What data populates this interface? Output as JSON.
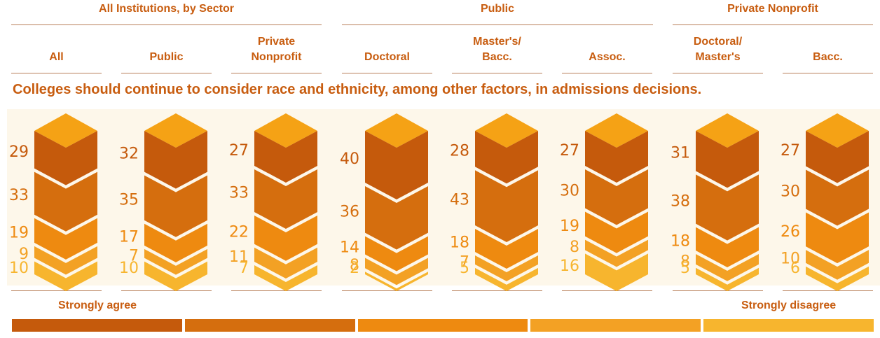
{
  "groups": [
    {
      "label": "All Institutions, by Sector"
    },
    {
      "label": "Public"
    },
    {
      "label": "Private Nonprofit"
    }
  ],
  "columns": [
    {
      "label": "All"
    },
    {
      "label": "Public"
    },
    {
      "label": "Private\nNonprofit"
    },
    {
      "label": "Doctoral"
    },
    {
      "label": "Master's/\nBacc."
    },
    {
      "label": "Assoc."
    },
    {
      "label": "Doctoral/\nMaster's"
    },
    {
      "label": "Bacc."
    }
  ],
  "question": "Colleges should continue to consider race and ethnicity, among other factors, in admissions decisions.",
  "scale": {
    "left": "Strongly agree",
    "right": "Strongly disagree"
  },
  "colors": [
    "#c55a0c",
    "#d56e0e",
    "#ee8a10",
    "#f3a124",
    "#f7b52e"
  ],
  "top_colors": {
    "face": "#f5a215",
    "edge": "#e8920d"
  },
  "chart_data": {
    "type": "bar",
    "categories": [
      "All",
      "Public",
      "Private Nonprofit",
      "Doctoral",
      "Master's/Bacc.",
      "Assoc.",
      "Doctoral/Master's",
      "Bacc."
    ],
    "series": [
      {
        "name": "Strongly agree",
        "values": [
          29,
          32,
          27,
          40,
          28,
          27,
          31,
          27
        ]
      },
      {
        "name": "",
        "values": [
          33,
          35,
          33,
          36,
          43,
          30,
          38,
          30
        ]
      },
      {
        "name": "",
        "values": [
          19,
          17,
          22,
          14,
          18,
          19,
          18,
          26
        ]
      },
      {
        "name": "",
        "values": [
          9,
          7,
          11,
          8,
          7,
          8,
          8,
          10
        ]
      },
      {
        "name": "Strongly disagree",
        "values": [
          10,
          10,
          7,
          2,
          5,
          16,
          5,
          6
        ]
      }
    ],
    "title": "Colleges should continue to consider race and ethnicity, among other factors, in admissions decisions."
  }
}
